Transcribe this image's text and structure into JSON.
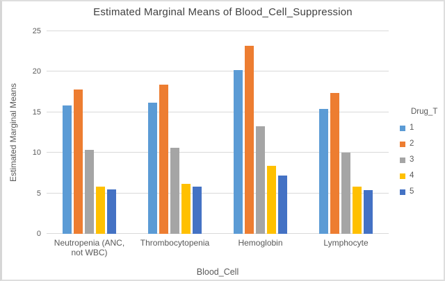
{
  "chart_data": {
    "type": "bar",
    "title": "Estimated Marginal Means of Blood_Cell_Suppression",
    "xlabel": "Blood_Cell",
    "ylabel": "Estimated Marginal Means",
    "ylim": [
      0,
      25
    ],
    "yticks": [
      0,
      5,
      10,
      15,
      20,
      25
    ],
    "grid": true,
    "legend_title": "Drug_T",
    "legend_position": "right",
    "categories": [
      "Neutropenia  (ANC, not WBC)",
      "Thrombocytopenia",
      "Hemoglobin",
      "Lymphocyte"
    ],
    "series": [
      {
        "name": "1",
        "color": "#5B9BD5",
        "values": [
          15.8,
          16.2,
          20.2,
          15.4
        ]
      },
      {
        "name": "2",
        "color": "#ED7D31",
        "values": [
          17.8,
          18.4,
          23.2,
          17.4
        ]
      },
      {
        "name": "3",
        "color": "#A5A5A5",
        "values": [
          10.4,
          10.6,
          13.3,
          10.0
        ]
      },
      {
        "name": "4",
        "color": "#FFC000",
        "values": [
          5.8,
          6.2,
          8.4,
          5.8
        ]
      },
      {
        "name": "5",
        "color": "#4472C4",
        "values": [
          5.5,
          5.8,
          7.2,
          5.4
        ]
      }
    ],
    "colors": {
      "gridline": "#d9d9d9",
      "title_text": "#404040",
      "axis_text": "#595959"
    }
  }
}
